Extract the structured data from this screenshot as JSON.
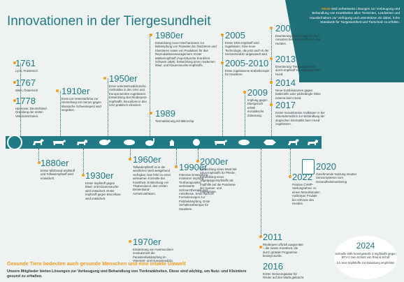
{
  "title": "Innovationen in der Tiergesundheit",
  "intro": {
    "highlight": "Heute",
    "text": " sind verbesserte Lösungen zur Vorbeugung und Behandlung von Krankheiten allen Tierärzten, Landwirten und Haustierhaltern zur Verfügung und unterstützen sie dabei, hohe Standards für Tiergesundheit und Tierschutz zu erfüllen."
  },
  "events": [
    {
      "year": "1761",
      "desc": "Lyon, Frankreich"
    },
    {
      "year": "1767",
      "desc": "Wien, Österreich"
    },
    {
      "year": "1778",
      "desc": "Hannover, Deutschland Gründung der ersten Veterinärschulen."
    },
    {
      "year": "1880er",
      "desc": "Erster Milzbrand-Impfstoff und Tollwutimpfstoff wird entwickelt."
    },
    {
      "year": "1910er",
      "desc": "Erste US-Veterinärfirma zur Herstellung von Serum gegen klassische Schweinepest wird vergeben."
    },
    {
      "year": "1930er",
      "desc": "Erster Impfstoff gegen Maul- und Klauenseuche wird entwickelt. Erster Impfstoff gegen Brucellose wird entwickelt."
    },
    {
      "year": "1950er",
      "desc": "Erste veterinärmedizinische Antibiotika in den USA und Europa werden zugelassen. Entwicklung des Rinderpest-Impfstoffs. Brucellose in den USA praktisch eliminiert."
    },
    {
      "year": "1960er",
      "desc": "Tollwutimpfstoff ist in der westlichen Welt weitgehend verfügbar. Das führt zu einer wirksamen Kontrolle der Krankheit. Entdeckung von Thiabendazol, dem ersten Breitenband-Anthelminthikum."
    },
    {
      "year": "1970er",
      "desc": "Entdeckung von Avermectinen revolutioniert die Parasitenbekämpfung im Veterinär- und Humanmedizin."
    },
    {
      "year": "1980er",
      "desc": "Entwicklung neuer Mechanismen zur Bekämpfung von Parasiten bei Nutztieren und Kleintieren sowie von Produkten für das Reproduktionsmanagement. Erster Markerimpfstoff (Aujeszkysche Krankheit, Schwein 1986). Entwicklung eines modernen Maul- und Klauenseuche-Impfstoffs."
    },
    {
      "year": "1989",
      "desc": "Tiermarkierung mit Mikrochip"
    },
    {
      "year": "1990er",
      "desc": "Intensive Entwicklung moderner Impfung. Tiertherapeutika: verbesserte Schmerztherapie und Antiothesie. Erste Spot-on Formulierungen zur Flohbekämpfung. Erste Verhaltenstherapie für Haustiere."
    },
    {
      "year": "2000er",
      "desc": "Entwicklung eines West-Nil-Virus-Impfstoffs für Pferde. Entwicklung eines Vogelgrippeimpfstoffs als Impfhilfe auf die Pandemie der Human- und Vogelgrippe."
    },
    {
      "year": "2005",
      "desc": "Erster DNA-Impfstoff wird zugelassen. Eine neue Technologie, die jetzt auch in der Humanmedizin angewandt wird."
    },
    {
      "year": "2005-2010",
      "desc": "Erste zugelassene Krebstherapie für Haustiere."
    },
    {
      "year": "2009",
      "desc": "Impfung gegen Ebergeruch erhält europäische Zulassung."
    },
    {
      "year": "2007",
      "desc": "Erweiterung des therapeutischen Ansatzes bei Herzinsuffizienz des Hundes."
    },
    {
      "year": "2013",
      "desc": "Erweiterung Therapieoptionen durch Impfstoff zur Epilepsie beim Hund."
    },
    {
      "year": "2014",
      "desc": "Neue Kombinationen gegen bakterielle oder pilzbedingte Otitis externa beim Hund."
    },
    {
      "year": "2017",
      "desc": "Erster monoklonaler Antikörper in der Veterinärmedizin zur Behandlung der atopischen Dermatitis beim Hund zugelassen."
    },
    {
      "year": "2011",
      "desc": "Rinderpest offiziell ausgerottet – die zweite Krankheit, die durch globale Programme besiegt wurde."
    },
    {
      "year": "2016",
      "desc": "Erster Immunregulator für Rinder auf den Markt gebracht."
    },
    {
      "year": "2022",
      "desc": "Positive CVMP-Stellungnahme zu einem Monoklonalen Antikörper Produkt bei Arthrose des Hundes."
    },
    {
      "year": "2020",
      "desc": "Zunehmende Nutzung smarter Sensorsysteme zum Gesundheitsmonitoring"
    }
  ],
  "badge": {
    "year": "2024",
    "desc1": "Schnelle Hilfe bereitgestellt: 3 Impfstoffe gegen BTV-3 zum Schutz von Rind & Schaf",
    "desc2": "14 neue Impfstoffe zur Zulassung empfohlen"
  },
  "footer": {
    "heading": "Gesunde Tiere bedeuten auch gesunde Menschen und eine intakte Umwelt",
    "body": "Unsere Mitglieder bieten Lösungen zur Vorbeugung und Behandlung von Tierkrankheiten. Diese sind wichtig, um Nutz- und Kleintiere gesund zu erhalten."
  },
  "colors": {
    "primary": "#1f7a85",
    "accent": "#f39c1f",
    "background": "#eef2f1",
    "corner": "#1f6f78"
  },
  "icons": [
    "paw-icon",
    "horse-icon",
    "cow-icon",
    "dog-icon",
    "sheep-icon",
    "pig-icon",
    "cat-icon",
    "rabbit-icon",
    "chicken-icon",
    "fish-icon",
    "tablet-icon"
  ]
}
